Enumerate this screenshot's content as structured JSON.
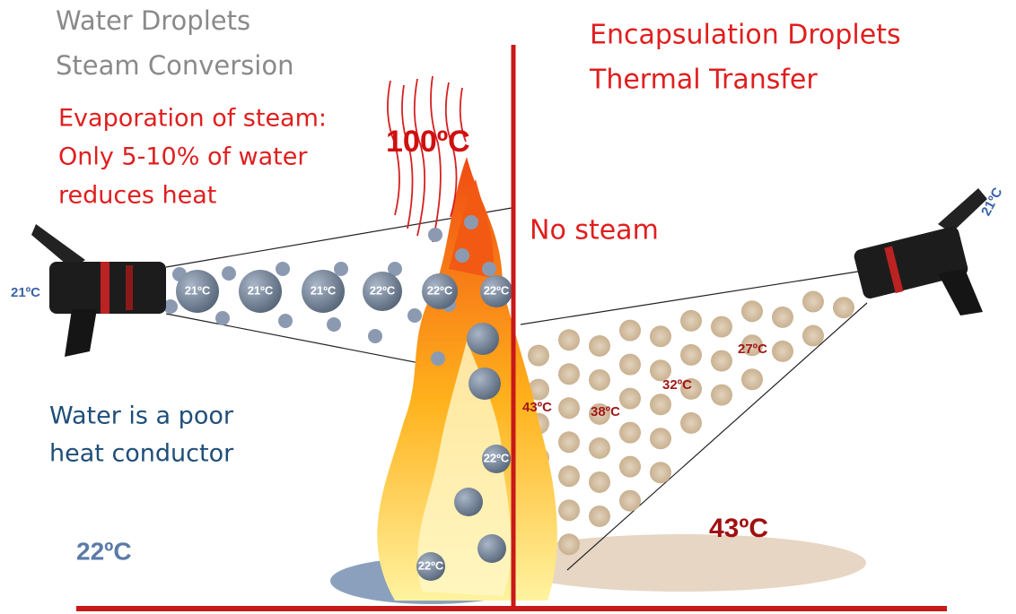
{
  "left": {
    "title": [
      "Water Droplets",
      "Steam Conversion"
    ],
    "note": [
      "Evaporation of steam:",
      "Only 5-10% of water",
      "reduces heat"
    ],
    "flame_temp": "100ºC",
    "nozzle_temp": "21ºC",
    "droplets": [
      "21ºC",
      "21ºC",
      "21ºC",
      "22ºC",
      "22ºC",
      "22ºC",
      "22ºC",
      "22ºC"
    ],
    "conductor": [
      "Water is a poor",
      "heat conductor"
    ],
    "floor_temp": "22ºC"
  },
  "right": {
    "title": [
      "Encapsulation Droplets",
      "Thermal Transfer"
    ],
    "no_steam": "No steam",
    "nozzle_temp": "21ºC",
    "zones": [
      "43ºC",
      "38ºC",
      "32ºC",
      "27ºC"
    ],
    "floor_temp": "43ºC"
  }
}
